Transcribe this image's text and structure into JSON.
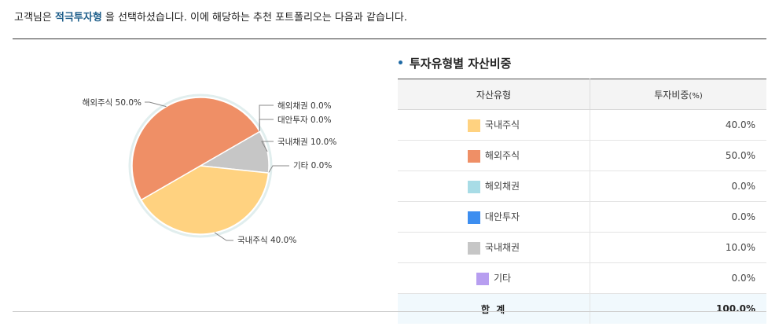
{
  "intro": {
    "prefix": "고객님은 ",
    "profile": "적극투자형",
    "suffix": " 을 선택하셨습니다. 이에 해당하는 추천 포트폴리오는 다음과 같습니다."
  },
  "section": {
    "title": "투자유형별 자산비중"
  },
  "table": {
    "headers": {
      "type": "자산유형",
      "ratio": "투자비중",
      "unit": "(%)"
    },
    "rows": [
      {
        "name": "국내주식",
        "value": "40.0%",
        "color": "#ffd280"
      },
      {
        "name": "해외주식",
        "value": "50.0%",
        "color": "#ef8f66"
      },
      {
        "name": "해외채권",
        "value": "0.0%",
        "color": "#a8dce6"
      },
      {
        "name": "대안투자",
        "value": "0.0%",
        "color": "#3d8ef0"
      },
      {
        "name": "국내채권",
        "value": "10.0%",
        "color": "#c6c6c6"
      },
      {
        "name": "기타",
        "value": "0.0%",
        "color": "#b79ef0"
      }
    ],
    "total": {
      "label": "합 계",
      "value": "100.0%"
    }
  },
  "chart_data": {
    "type": "pie",
    "slices": [
      {
        "name": "해외주식",
        "value": 50.0,
        "label": "해외주식 50.0%",
        "color": "#ef8f66"
      },
      {
        "name": "해외채권",
        "value": 0.0,
        "label": "해외채권 0.0%",
        "color": "#a8dce6"
      },
      {
        "name": "대안투자",
        "value": 0.0,
        "label": "대안투자 0.0%",
        "color": "#3d8ef0"
      },
      {
        "name": "국내채권",
        "value": 10.0,
        "label": "국내채권 10.0%",
        "color": "#c6c6c6"
      },
      {
        "name": "기타",
        "value": 0.0,
        "label": "기타 0.0%",
        "color": "#b79ef0"
      },
      {
        "name": "국내주식",
        "value": 40.0,
        "label": "국내주식 40.0%",
        "color": "#ffd280"
      }
    ],
    "start_angle_deg": 240,
    "direction": "clockwise"
  }
}
